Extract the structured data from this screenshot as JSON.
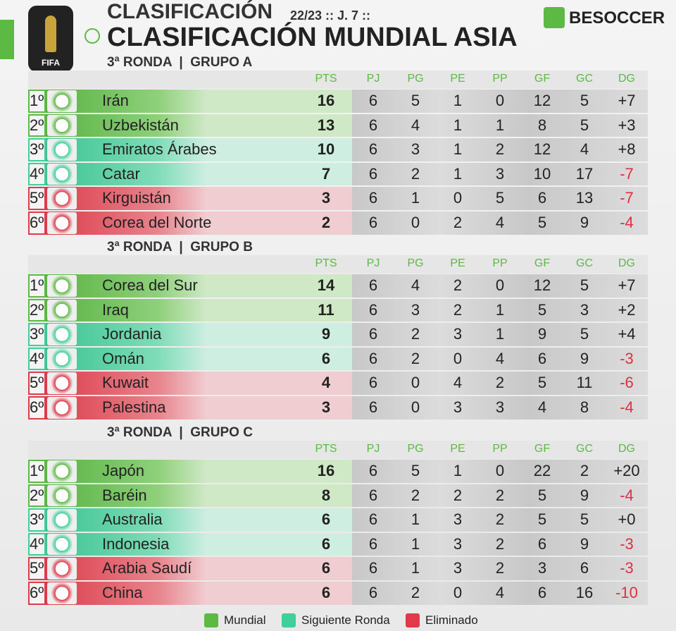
{
  "header": {
    "kicker": "CLASIFICACIÓN",
    "season": "22/23 :: J. 7 ::",
    "title": "CLASIFICACIÓN MUNDIAL ASIA",
    "brand": "BESOCCER",
    "logo": "FIFA"
  },
  "columns": [
    "PTS",
    "PJ",
    "PG",
    "PE",
    "PP",
    "GF",
    "GC",
    "DG"
  ],
  "legend": [
    {
      "label": "Mundial",
      "color": "#5cb944"
    },
    {
      "label": "Siguiente Ronda",
      "color": "#3fcf9a"
    },
    {
      "label": "Eliminado",
      "color": "#e03a4a"
    }
  ],
  "groups": [
    {
      "label": "3ª RONDA  |  GRUPO A",
      "rows": [
        {
          "cells": [
            "1º",
            "Irán",
            16,
            6,
            5,
            1,
            0,
            12,
            5,
            "+7"
          ],
          "zone": 0
        },
        {
          "cells": [
            "2º",
            "Uzbekistán",
            13,
            6,
            4,
            1,
            1,
            8,
            5,
            "+3"
          ],
          "zone": 0
        },
        {
          "cells": [
            "3º",
            "Emiratos Árabes",
            10,
            6,
            3,
            1,
            2,
            12,
            4,
            "+8"
          ],
          "zone": 1
        },
        {
          "cells": [
            "4º",
            "Catar",
            7,
            6,
            2,
            1,
            3,
            10,
            17,
            "-7"
          ],
          "zone": 1
        },
        {
          "cells": [
            "5º",
            "Kirguistán",
            3,
            6,
            1,
            0,
            5,
            6,
            13,
            "-7"
          ],
          "zone": 2
        },
        {
          "cells": [
            "6º",
            "Corea del Norte",
            2,
            6,
            0,
            2,
            4,
            5,
            9,
            "-4"
          ],
          "zone": 2
        }
      ]
    },
    {
      "label": "3ª RONDA  |  GRUPO B",
      "rows": [
        {
          "cells": [
            "1º",
            "Corea del Sur",
            14,
            6,
            4,
            2,
            0,
            12,
            5,
            "+7"
          ],
          "zone": 0
        },
        {
          "cells": [
            "2º",
            "Iraq",
            11,
            6,
            3,
            2,
            1,
            5,
            3,
            "+2"
          ],
          "zone": 0
        },
        {
          "cells": [
            "3º",
            "Jordania",
            9,
            6,
            2,
            3,
            1,
            9,
            5,
            "+4"
          ],
          "zone": 1
        },
        {
          "cells": [
            "4º",
            "Omán",
            6,
            6,
            2,
            0,
            4,
            6,
            9,
            "-3"
          ],
          "zone": 1
        },
        {
          "cells": [
            "5º",
            "Kuwait",
            4,
            6,
            0,
            4,
            2,
            5,
            11,
            "-6"
          ],
          "zone": 2
        },
        {
          "cells": [
            "6º",
            "Palestina",
            3,
            6,
            0,
            3,
            3,
            4,
            8,
            "-4"
          ],
          "zone": 2
        }
      ]
    },
    {
      "label": "3ª RONDA  |  GRUPO C",
      "rows": [
        {
          "cells": [
            "1º",
            "Japón",
            16,
            6,
            5,
            1,
            0,
            22,
            2,
            "+20"
          ],
          "zone": 0
        },
        {
          "cells": [
            "2º",
            "Baréin",
            8,
            6,
            2,
            2,
            2,
            5,
            9,
            "-4"
          ],
          "zone": 0
        },
        {
          "cells": [
            "3º",
            "Australia",
            6,
            6,
            1,
            3,
            2,
            5,
            5,
            "+0"
          ],
          "zone": 1
        },
        {
          "cells": [
            "4º",
            "Indonesia",
            6,
            6,
            1,
            3,
            2,
            6,
            9,
            "-3"
          ],
          "zone": 1
        },
        {
          "cells": [
            "5º",
            "Arabia Saudí",
            6,
            6,
            1,
            3,
            2,
            3,
            6,
            "-3"
          ],
          "zone": 2
        },
        {
          "cells": [
            "6º",
            "China",
            6,
            6,
            2,
            0,
            4,
            6,
            16,
            "-10"
          ],
          "zone": 2
        }
      ]
    }
  ]
}
